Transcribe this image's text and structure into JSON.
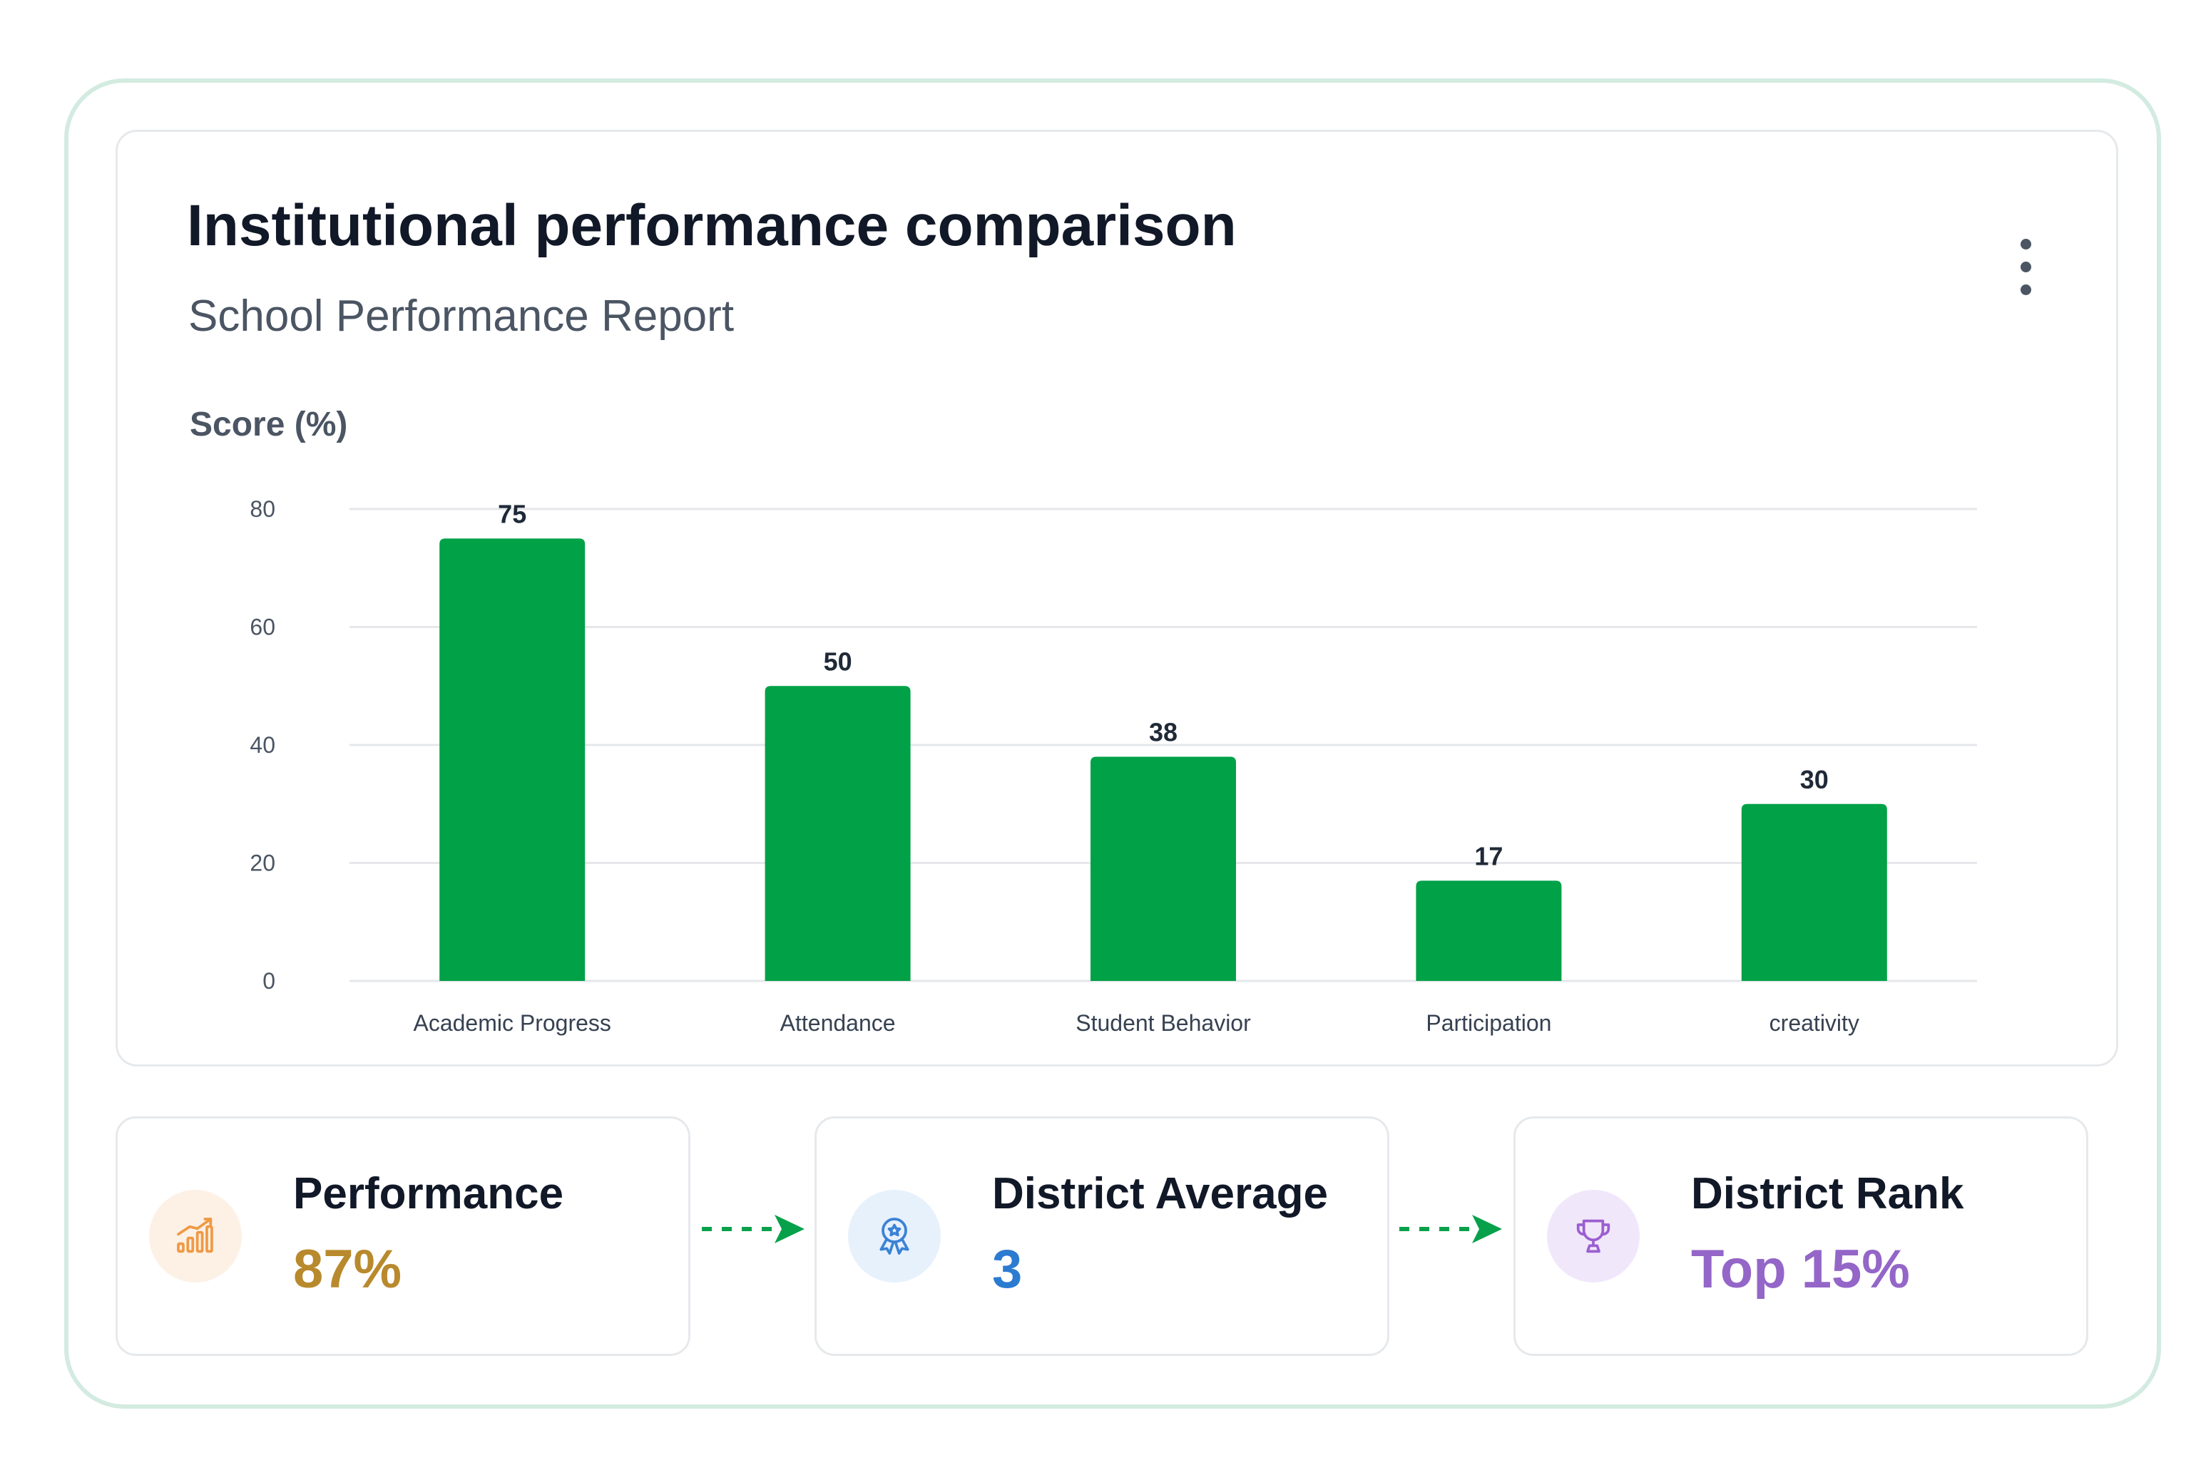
{
  "header": {
    "title": "Institutional performance comparison",
    "subtitle": "School Performance Report",
    "menu_icon": "more-vertical-icon"
  },
  "chart_data": {
    "type": "bar",
    "ylabel": "Score (%)",
    "xlabel": "",
    "categories": [
      "Academic Progress",
      "Attendance",
      "Student Behavior",
      "Participation",
      "creativity"
    ],
    "values": [
      75,
      50,
      38,
      17,
      30
    ],
    "ylim": [
      0,
      80
    ],
    "yticks": [
      0,
      20,
      40,
      60,
      80
    ],
    "grid": true,
    "bar_color": "#00a147",
    "data_labels": true
  },
  "stats": [
    {
      "label": "Performance",
      "value": "87%",
      "icon": "bar-chart-growth-icon",
      "color": "#b88a2d",
      "icon_bg": "#fdf1e6",
      "icon_color": "#ef9a45"
    },
    {
      "label": "District Average",
      "value": "3",
      "icon": "award-badge-icon",
      "color": "#2b7bd0",
      "icon_bg": "#e7f1fc",
      "icon_color": "#3b82d6"
    },
    {
      "label": "District Rank",
      "value": "Top 15%",
      "icon": "trophy-icon",
      "color": "#9466c8",
      "icon_bg": "#f1e7fb",
      "icon_color": "#9b5fd1"
    }
  ],
  "connector_color": "#06a14a"
}
